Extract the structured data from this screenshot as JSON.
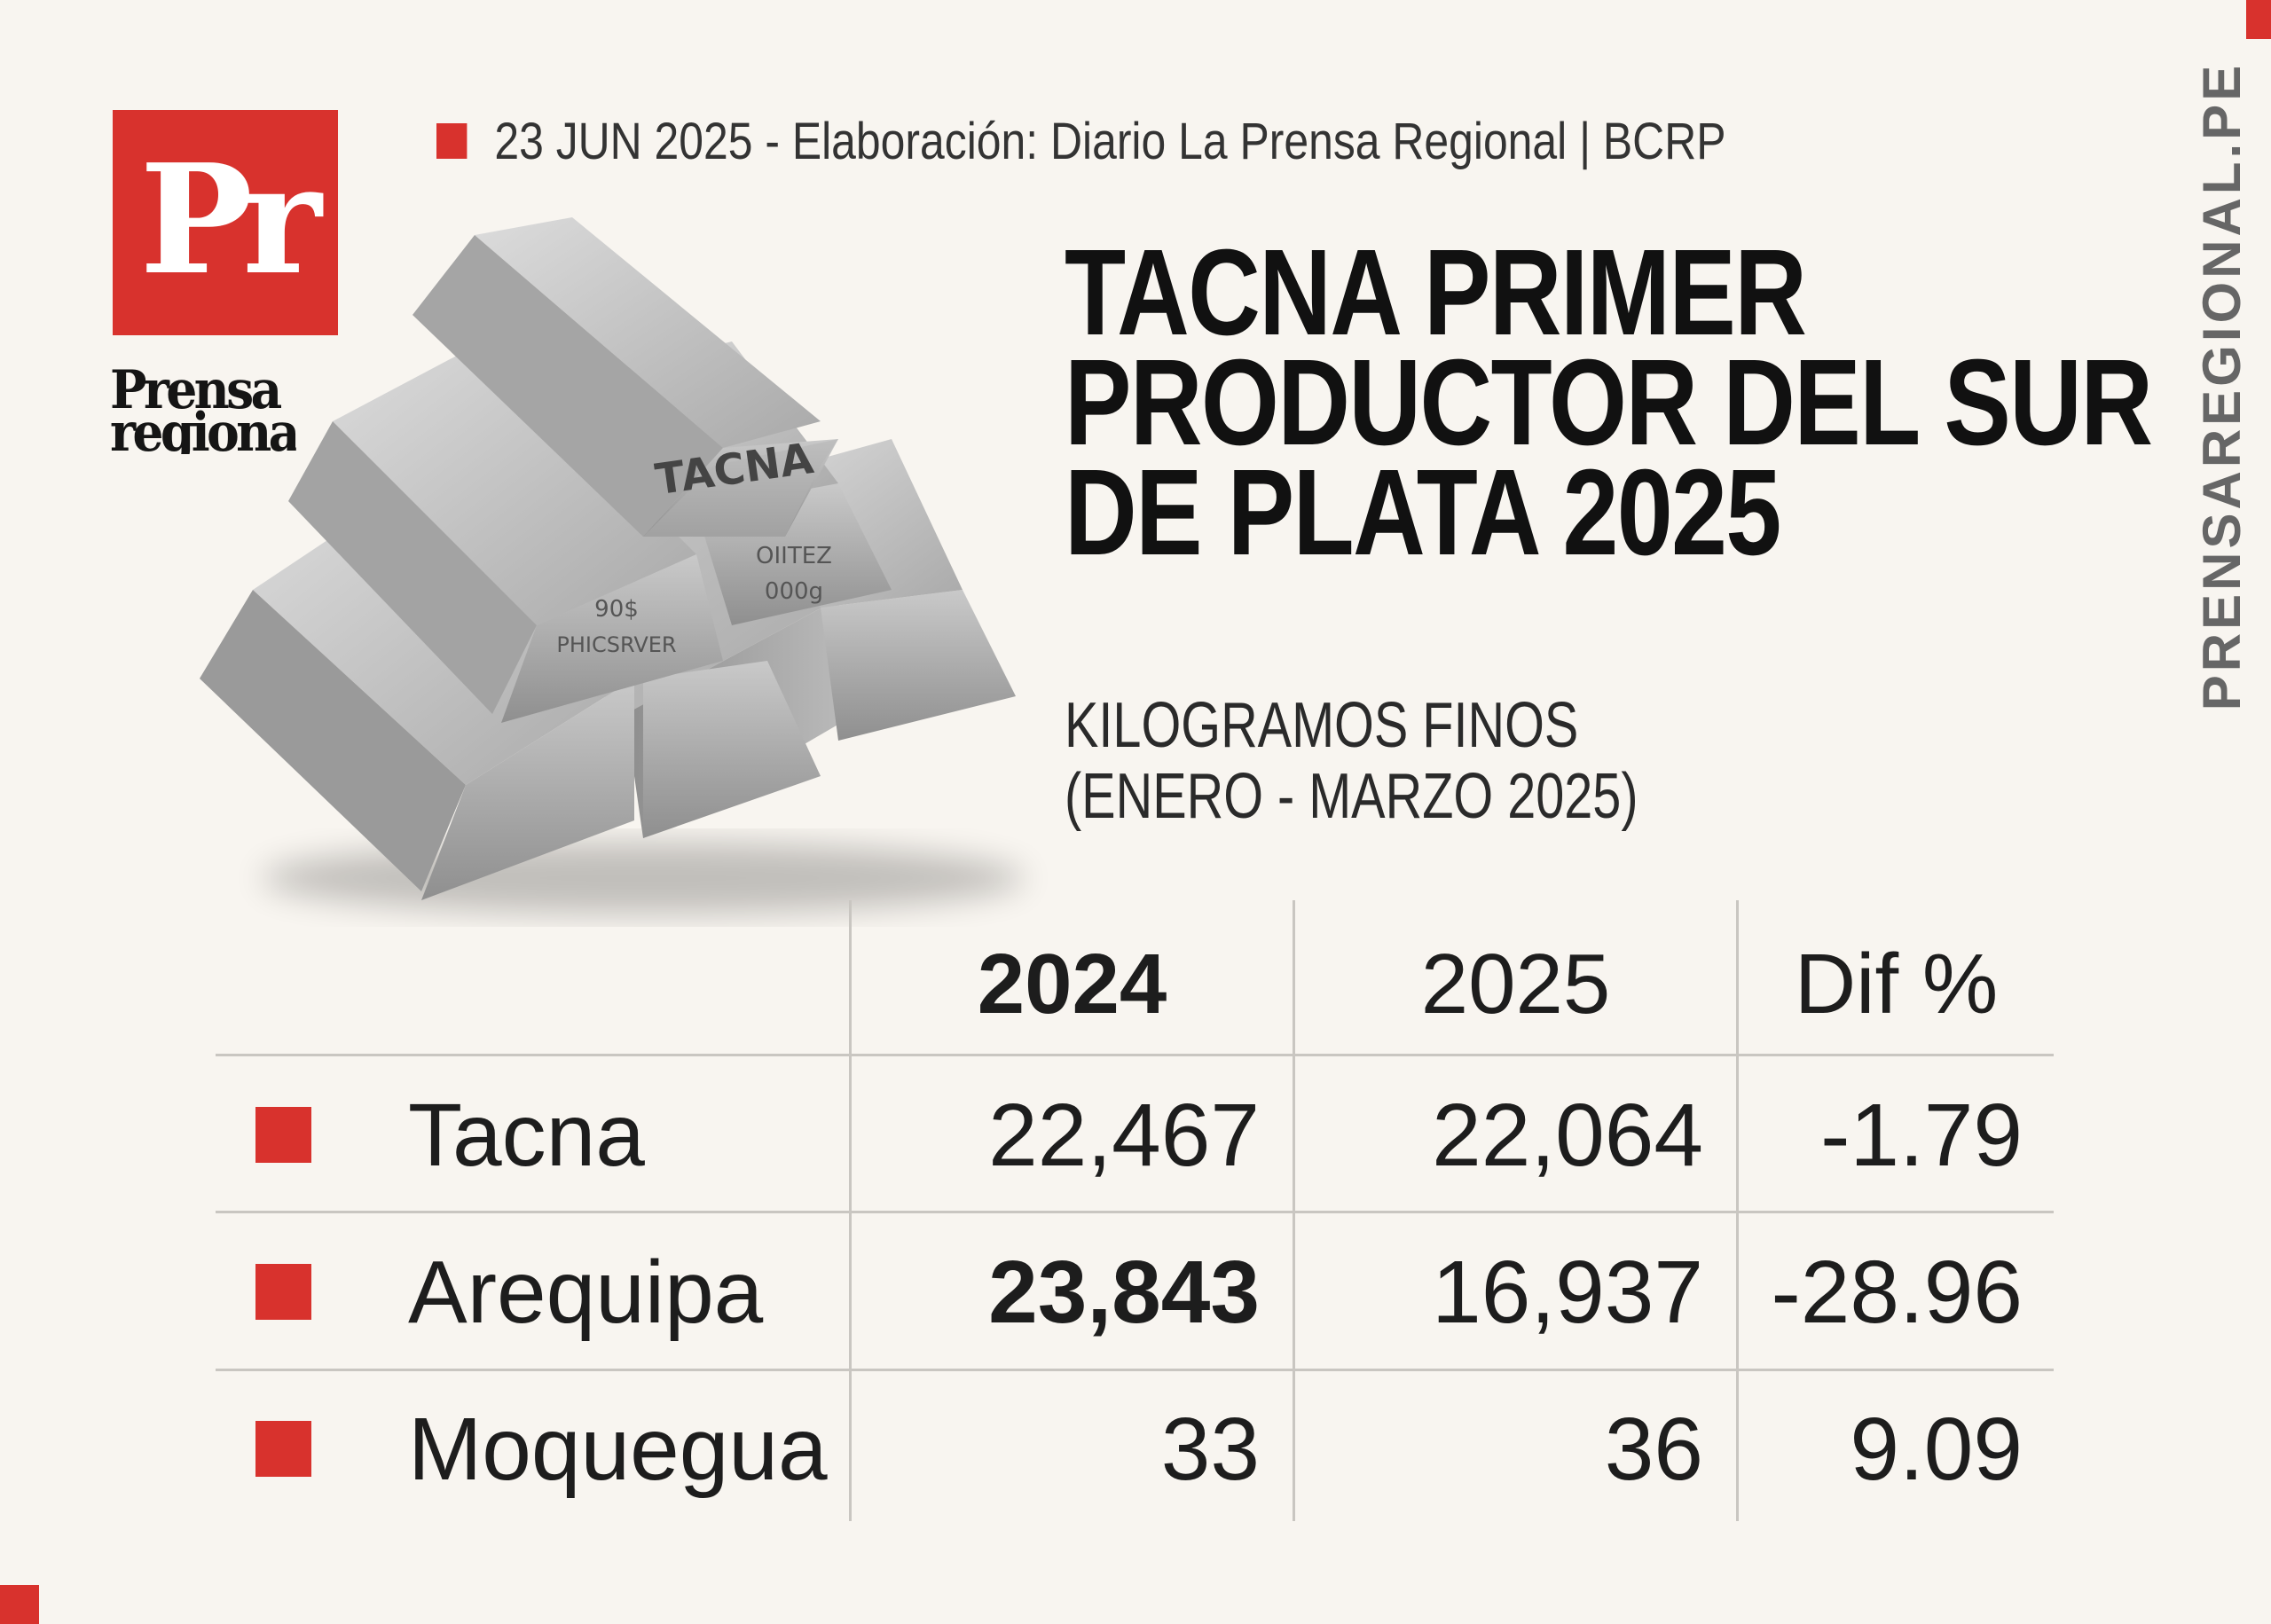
{
  "brand": {
    "logo_letters": "Pr",
    "logo_word_line1": "Prensa",
    "logo_word_line2": "regional",
    "site": "PRENSAREGIONAL.PE",
    "accent_color": "#d8322d"
  },
  "source_line": "23 JUN 2025 -  Elaboración: Diario La Prensa Regional | BCRP",
  "illustration": {
    "top_bar_label": "TACNA",
    "left_bar_label_line1": "90$",
    "left_bar_label_line2": "PHICSRVER",
    "right_bar_label_line1": "OIITEZ",
    "right_bar_label_line2": "000g"
  },
  "chart_data": {
    "type": "table",
    "title_lines": [
      "TACNA PRIMER",
      "PRODUCTOR DEL SUR",
      "DE PLATA 2025"
    ],
    "subtitle_lines": [
      "KILOGRAMOS FINOS",
      "(ENERO - MARZO 2025)"
    ],
    "columns": [
      "2024",
      "2025",
      "Dif %"
    ],
    "rows": [
      {
        "region": "Tacna",
        "y2024": "22,467",
        "y2025": "22,064",
        "dif": "-1.79"
      },
      {
        "region": "Arequipa",
        "y2024": "23,843",
        "y2025": "16,937",
        "dif": "-28.96"
      },
      {
        "region": "Moquegua",
        "y2024": "33",
        "y2025": "36",
        "dif": "9.09"
      }
    ]
  }
}
